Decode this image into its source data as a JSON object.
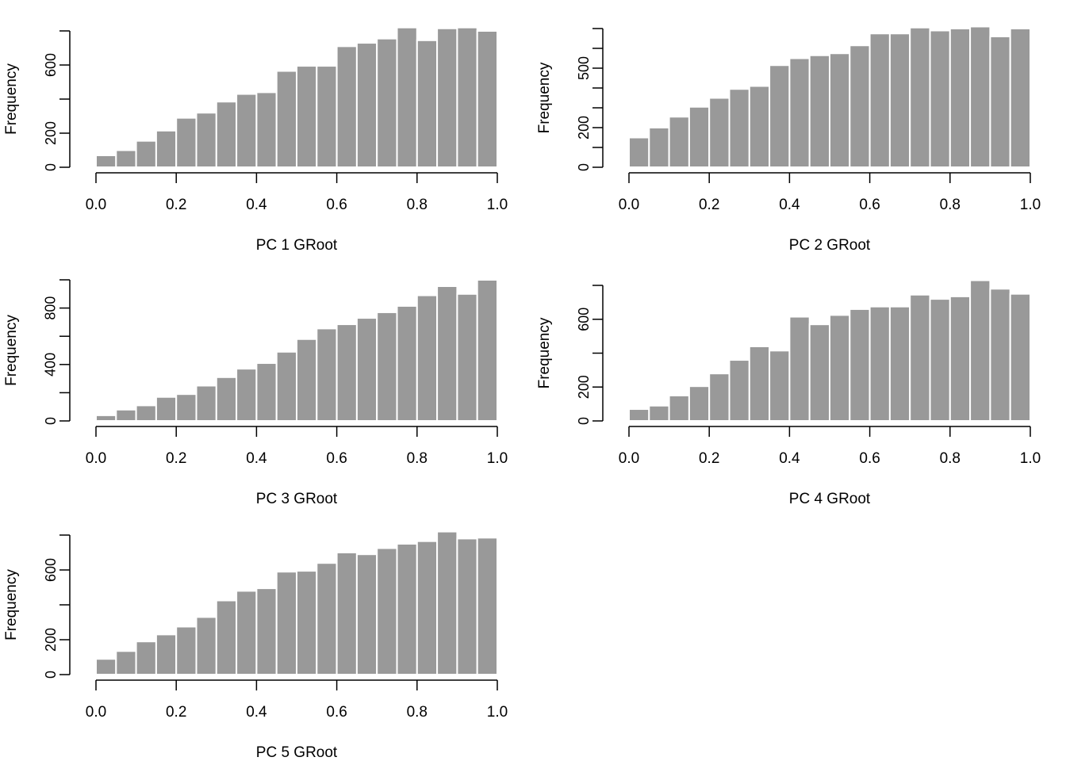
{
  "style": {
    "bar_fill": "#999999",
    "bar_stroke": "#ffffff",
    "axis_color": "#000000"
  },
  "chart_data": [
    {
      "type": "bar",
      "title": "",
      "xlabel": "PC 1 GRoot",
      "ylabel": "Frequency",
      "bins_start": 0.0,
      "bin_width": 0.05,
      "values": [
        70,
        100,
        155,
        215,
        290,
        320,
        385,
        430,
        440,
        565,
        595,
        595,
        710,
        730,
        755,
        820,
        745,
        815,
        820,
        800
      ],
      "xlim": [
        0,
        1
      ],
      "ylim": [
        0,
        800
      ],
      "xticks": [
        "0.0",
        "0.2",
        "0.4",
        "0.6",
        "0.8",
        "1.0"
      ],
      "xtick_values": [
        0,
        0.2,
        0.4,
        0.6,
        0.8,
        1.0
      ],
      "yticks_labeled": [
        "0",
        "200",
        "600"
      ],
      "ytick_labeled_values": [
        0,
        200,
        600
      ],
      "ytick_values": [
        0,
        200,
        400,
        600,
        800
      ]
    },
    {
      "type": "bar",
      "title": "",
      "xlabel": "PC 2 GRoot",
      "ylabel": "Frequency",
      "bins_start": 0.0,
      "bin_width": 0.05,
      "values": [
        150,
        200,
        255,
        305,
        350,
        395,
        410,
        515,
        550,
        565,
        575,
        615,
        675,
        675,
        705,
        690,
        700,
        710,
        660,
        700
      ],
      "xlim": [
        0,
        1
      ],
      "ylim": [
        0,
        700
      ],
      "xticks": [
        "0.0",
        "0.2",
        "0.4",
        "0.6",
        "0.8",
        "1.0"
      ],
      "xtick_values": [
        0,
        0.2,
        0.4,
        0.6,
        0.8,
        1.0
      ],
      "yticks_labeled": [
        "0",
        "200",
        "500"
      ],
      "ytick_labeled_values": [
        0,
        200,
        500
      ],
      "ytick_values": [
        0,
        100,
        200,
        300,
        400,
        500,
        600,
        700
      ]
    },
    {
      "type": "bar",
      "title": "",
      "xlabel": "PC 3 GRoot",
      "ylabel": "Frequency",
      "bins_start": 0.0,
      "bin_width": 0.05,
      "values": [
        40,
        80,
        110,
        170,
        190,
        250,
        310,
        370,
        410,
        490,
        580,
        655,
        685,
        730,
        770,
        815,
        890,
        955,
        900,
        1000
      ],
      "xlim": [
        0,
        1
      ],
      "ylim": [
        0,
        1000
      ],
      "xticks": [
        "0.0",
        "0.2",
        "0.4",
        "0.6",
        "0.8",
        "1.0"
      ],
      "xtick_values": [
        0,
        0.2,
        0.4,
        0.6,
        0.8,
        1.0
      ],
      "yticks_labeled": [
        "0",
        "400",
        "800"
      ],
      "ytick_labeled_values": [
        0,
        400,
        800
      ],
      "ytick_values": [
        0,
        200,
        400,
        600,
        800,
        1000
      ]
    },
    {
      "type": "bar",
      "title": "",
      "xlabel": "PC 4 GRoot",
      "ylabel": "Frequency",
      "bins_start": 0.0,
      "bin_width": 0.05,
      "values": [
        70,
        90,
        150,
        205,
        280,
        360,
        440,
        415,
        615,
        570,
        625,
        660,
        675,
        675,
        745,
        720,
        735,
        830,
        780,
        750
      ],
      "xlim": [
        0,
        1
      ],
      "ylim": [
        0,
        800
      ],
      "xticks": [
        "0.0",
        "0.2",
        "0.4",
        "0.6",
        "0.8",
        "1.0"
      ],
      "xtick_values": [
        0,
        0.2,
        0.4,
        0.6,
        0.8,
        1.0
      ],
      "yticks_labeled": [
        "0",
        "200",
        "600"
      ],
      "ytick_labeled_values": [
        0,
        200,
        600
      ],
      "ytick_values": [
        0,
        200,
        400,
        600,
        800
      ]
    },
    {
      "type": "bar",
      "title": "",
      "xlabel": "PC 5 GRoot",
      "ylabel": "Frequency",
      "bins_start": 0.0,
      "bin_width": 0.05,
      "values": [
        90,
        135,
        190,
        230,
        275,
        330,
        425,
        480,
        495,
        590,
        595,
        640,
        700,
        690,
        725,
        750,
        765,
        820,
        780,
        785
      ],
      "xlim": [
        0,
        1
      ],
      "ylim": [
        0,
        800
      ],
      "xticks": [
        "0.0",
        "0.2",
        "0.4",
        "0.6",
        "0.8",
        "1.0"
      ],
      "xtick_values": [
        0,
        0.2,
        0.4,
        0.6,
        0.8,
        1.0
      ],
      "yticks_labeled": [
        "0",
        "200",
        "600"
      ],
      "ytick_labeled_values": [
        0,
        200,
        600
      ],
      "ytick_values": [
        0,
        200,
        400,
        600,
        800
      ]
    }
  ]
}
